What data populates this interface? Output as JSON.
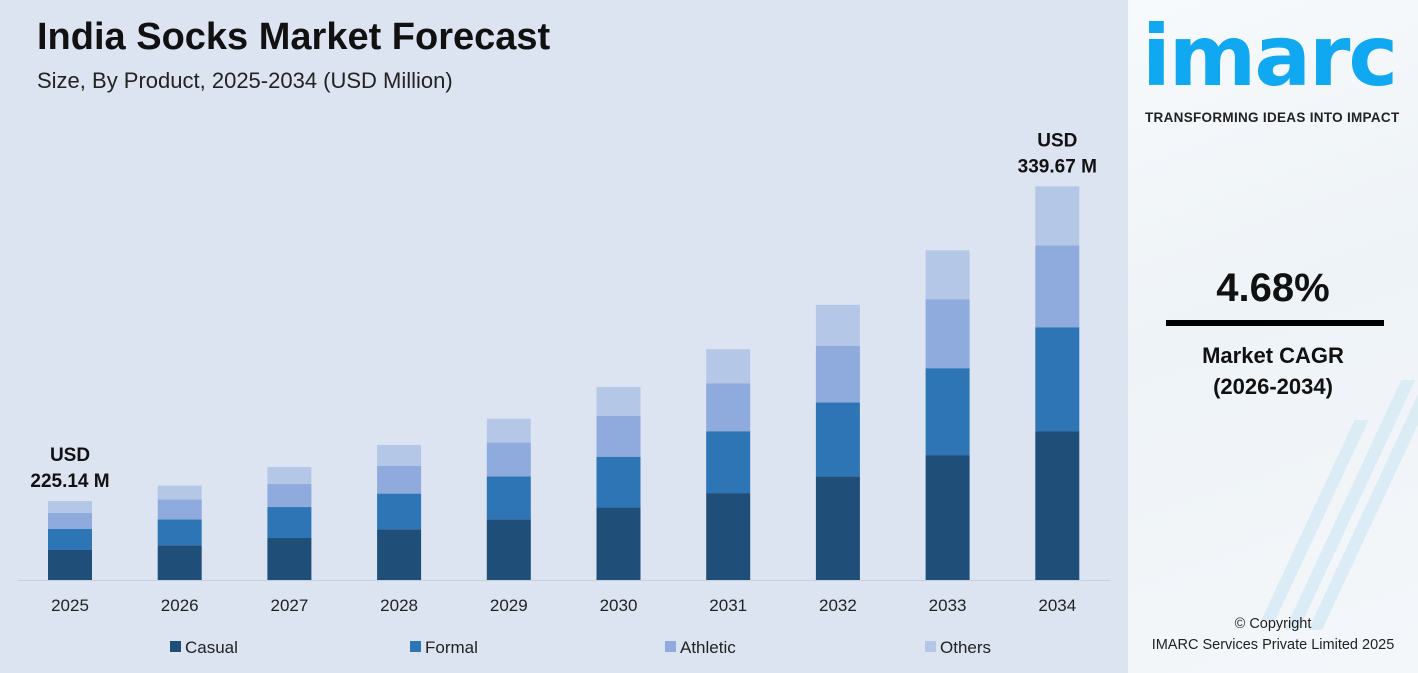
{
  "chart_data": {
    "type": "bar",
    "stacked": true,
    "title": "India Socks Market Forecast",
    "subtitle": "Size, By Product, 2025-2034 (USD Million)",
    "xlabel": "",
    "ylabel": "",
    "categories": [
      "2025",
      "2026",
      "2027",
      "2028",
      "2029",
      "2030",
      "2031",
      "2032",
      "2033",
      "2034"
    ],
    "series": [
      {
        "name": "Casual",
        "color": "#1f4e79",
        "values": [
          85.5,
          86.8,
          91.7,
          96.8,
          101.8,
          106.5,
          111.6,
          116.8,
          123.0,
          128.5
        ]
      },
      {
        "name": "Formal",
        "color": "#2e75b6",
        "values": [
          59.8,
          64.5,
          67.7,
          68.4,
          71.8,
          74.4,
          79.5,
          83.1,
          85.6,
          89.7
        ]
      },
      {
        "name": "Athletic",
        "color": "#8faadc",
        "values": [
          45.6,
          49.6,
          50.2,
          53.2,
          56.7,
          59.8,
          61.6,
          64.0,
          67.9,
          70.7
        ]
      },
      {
        "name": "Others",
        "color": "#b4c7e7",
        "values": [
          34.2,
          34.7,
          37.1,
          39.9,
          40.0,
          42.3,
          43.6,
          46.1,
          48.2,
          50.9
        ]
      }
    ],
    "annotations": [
      {
        "category": "2025",
        "line1": "USD",
        "line2": "225.14 M"
      },
      {
        "category": "2034",
        "line1": "USD",
        "line2": "339.67 M"
      }
    ],
    "y_axis_visible": false,
    "grid": false,
    "legend_position": "bottom"
  },
  "brand": {
    "logo": "imarc",
    "tagline": "TRANSFORMING IDEAS INTO IMPACT",
    "color": "#10a8f0"
  },
  "cagr": {
    "value": "4.68%",
    "label_line1": "Market CAGR",
    "label_line2": "(2026-2034)"
  },
  "footer": {
    "line1": "© Copyright",
    "line2": "IMARC Services Private Limited 2025"
  }
}
